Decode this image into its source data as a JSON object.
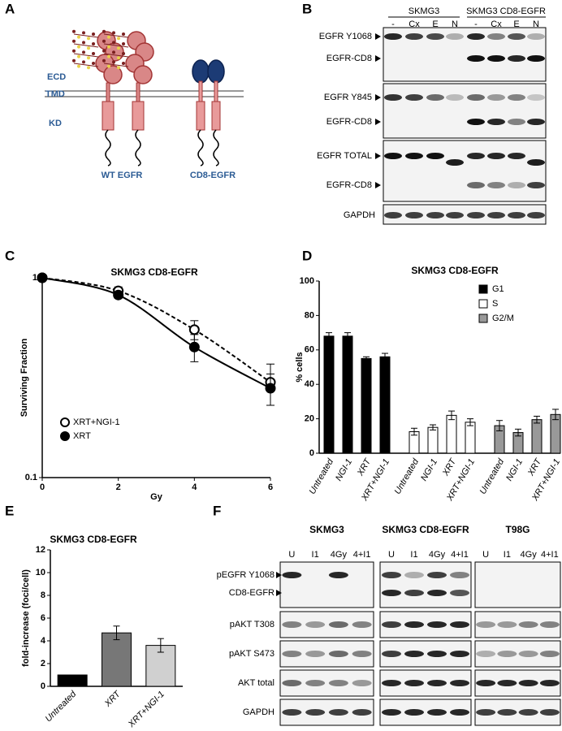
{
  "panel_labels": [
    "A",
    "B",
    "C",
    "D",
    "E",
    "F"
  ],
  "diagram_a": {
    "region_labels": [
      "ECD",
      "TMD",
      "KD"
    ],
    "receptors": [
      "WT EGFR",
      "CD8-EGFR"
    ]
  },
  "blot_b": {
    "groups": [
      "SKMG3",
      "SKMG3 CD8-EGFR"
    ],
    "lanes": [
      "-",
      "Cx",
      "E",
      "N",
      "-",
      "Cx",
      "E",
      "N"
    ],
    "rows": [
      "EGFR Y1068",
      "EGFR-CD8",
      "EGFR Y845",
      "EGFR-CD8",
      "EGFR TOTAL",
      "EGFR-CD8",
      "GAPDH"
    ]
  },
  "chart_data": [
    {
      "type": "line",
      "title": "SKMG3 CD8-EGFR",
      "x_label": "Gy",
      "y_label": "Surviving Fraction",
      "x": [
        0,
        2,
        4,
        6
      ],
      "xlim": [
        0,
        6
      ],
      "xticks": [
        0,
        2,
        4,
        6
      ],
      "ylim": [
        0.1,
        1
      ],
      "yticks": [
        0.1,
        1
      ],
      "log_y": true,
      "legend": "lower left",
      "series": [
        {
          "name": "XRT+NGI-1",
          "color": "#000000",
          "marker": "open",
          "dash": true,
          "values": [
            1,
            0.86,
            0.55,
            0.3
          ],
          "errors": [
            0,
            0.04,
            0.06,
            0.07
          ]
        },
        {
          "name": "XRT",
          "color": "#000000",
          "marker": "filled",
          "dash": false,
          "values": [
            1,
            0.82,
            0.45,
            0.28
          ],
          "errors": [
            0,
            0.03,
            0.07,
            0.05
          ]
        }
      ]
    },
    {
      "type": "bar",
      "title": "SKMG3 CD8-EGFR",
      "y_label": "% cells",
      "categories": [
        "Untreated",
        "NGI-1",
        "XRT",
        "XRT+NGI-1"
      ],
      "ylim": [
        0,
        100
      ],
      "yticks": [
        0,
        20,
        40,
        60,
        80,
        100
      ],
      "legend": "upper right",
      "series": [
        {
          "name": "G1",
          "color": "#000000",
          "values": [
            68,
            68,
            55,
            56
          ],
          "errors": [
            2,
            2,
            1,
            2
          ]
        },
        {
          "name": "S",
          "color": "#ffffff",
          "values": [
            12.5,
            15,
            22,
            18
          ],
          "errors": [
            2,
            1.5,
            2.5,
            2
          ]
        },
        {
          "name": "G2/M",
          "color": "#999999",
          "values": [
            16,
            12,
            19.5,
            22.5
          ],
          "errors": [
            3,
            2,
            2,
            3
          ]
        }
      ]
    },
    {
      "type": "bar",
      "title": "SKMG3 CD8-EGFR",
      "y_label": "fold-increase (foci/cell)",
      "categories": [
        "Untreated",
        "XRT",
        "XRT+NGI-1"
      ],
      "values": [
        1,
        4.7,
        3.6
      ],
      "errors": [
        0,
        0.6,
        0.6
      ],
      "colors": [
        "#000000",
        "#777777",
        "#d0d0d0"
      ],
      "ylim": [
        0,
        12
      ],
      "yticks": [
        0,
        2,
        4,
        6,
        8,
        10,
        12
      ]
    }
  ],
  "blot_f": {
    "groups": [
      "SKMG3",
      "SKMG3 CD8-EGFR",
      "T98G"
    ],
    "lanes": [
      "U",
      "I1",
      "4Gy",
      "4+I1"
    ],
    "rows": [
      "pEGFR Y1068",
      "CD8-EGFR",
      "pAKT T308",
      "pAKT S473",
      "AKT total",
      "GAPDH"
    ]
  }
}
